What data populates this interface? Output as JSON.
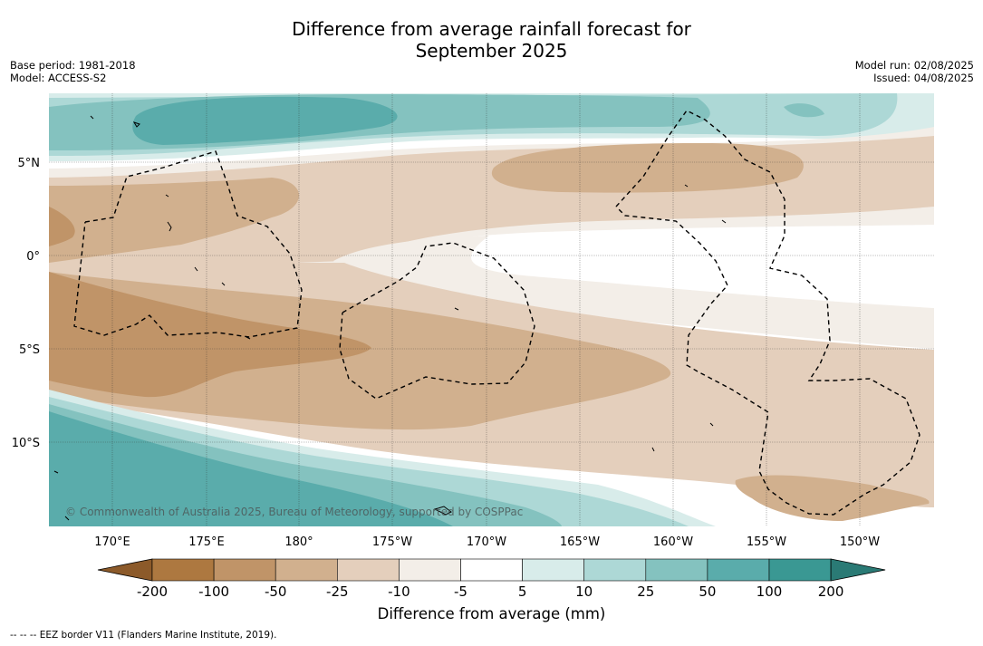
{
  "title_line1": "Difference from average rainfall forecast for",
  "title_line2": "September 2025",
  "base_period": "Base period: 1981-2018",
  "model": "Model: ACCESS-S2",
  "model_run": "Model run: 02/08/2025",
  "issued": "Issued: 04/08/2025",
  "copyright": "© Commonwealth of Australia 2025, Bureau of Meteorology, supported by COSPPac",
  "footer": "--  --  -- EEZ border V11 (Flanders Marine Institute, 2019).",
  "map": {
    "lat_labels": [
      "5°N",
      "0°",
      "5°S",
      "10°S"
    ],
    "lon_labels": [
      "170°E",
      "175°E",
      "180°",
      "175°W",
      "170°W",
      "165°W",
      "160°W",
      "155°W",
      "150°W"
    ]
  },
  "colorbar": {
    "label": "Difference from average (mm)",
    "tick_labels": [
      "-200",
      "-100",
      "-50",
      "-25",
      "-10",
      "-5",
      "5",
      "10",
      "25",
      "50",
      "100",
      "200"
    ],
    "colors": [
      "#8c5a2a",
      "#ad7840",
      "#c09468",
      "#d1b08e",
      "#e4cfbc",
      "#f3eee8",
      "#ffffff",
      "#d8ecea",
      "#add8d6",
      "#84c2bf",
      "#5aacab",
      "#3a9893",
      "#2a7a75"
    ]
  }
}
